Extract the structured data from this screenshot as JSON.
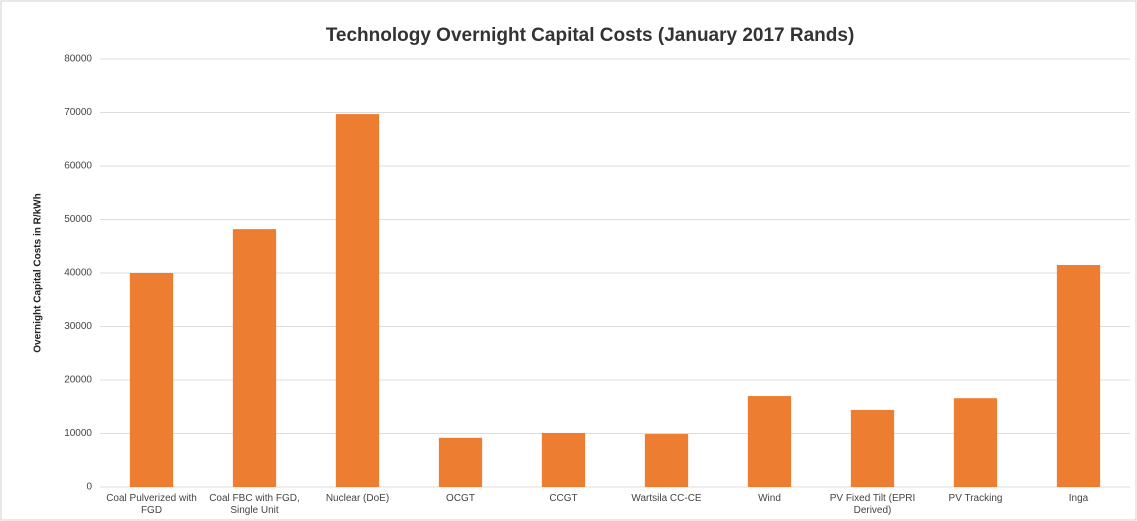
{
  "chart_data": {
    "type": "bar",
    "title": "Technology Overnight Capital Costs (January 2017 Rands)",
    "y_label": "Overnight Capital Costs in R/kWh",
    "categories": [
      "Coal Pulverized with FGD",
      "Coal FBC with FGD, Single Unit",
      "Nuclear (DoE)",
      "OCGT",
      "CCGT",
      "Wartsila CC-CE",
      "Wind",
      "PV Fixed Tilt (EPRI Derived)",
      "PV Tracking",
      "Inga"
    ],
    "values": [
      40000,
      48200,
      69700,
      9200,
      10100,
      9900,
      17000,
      14400,
      16600,
      41500
    ],
    "color": "#ed7d31",
    "ylim": [
      0,
      80000
    ],
    "yticks": [
      0,
      10000,
      20000,
      30000,
      40000,
      50000,
      60000,
      70000,
      80000
    ],
    "grid": true
  }
}
